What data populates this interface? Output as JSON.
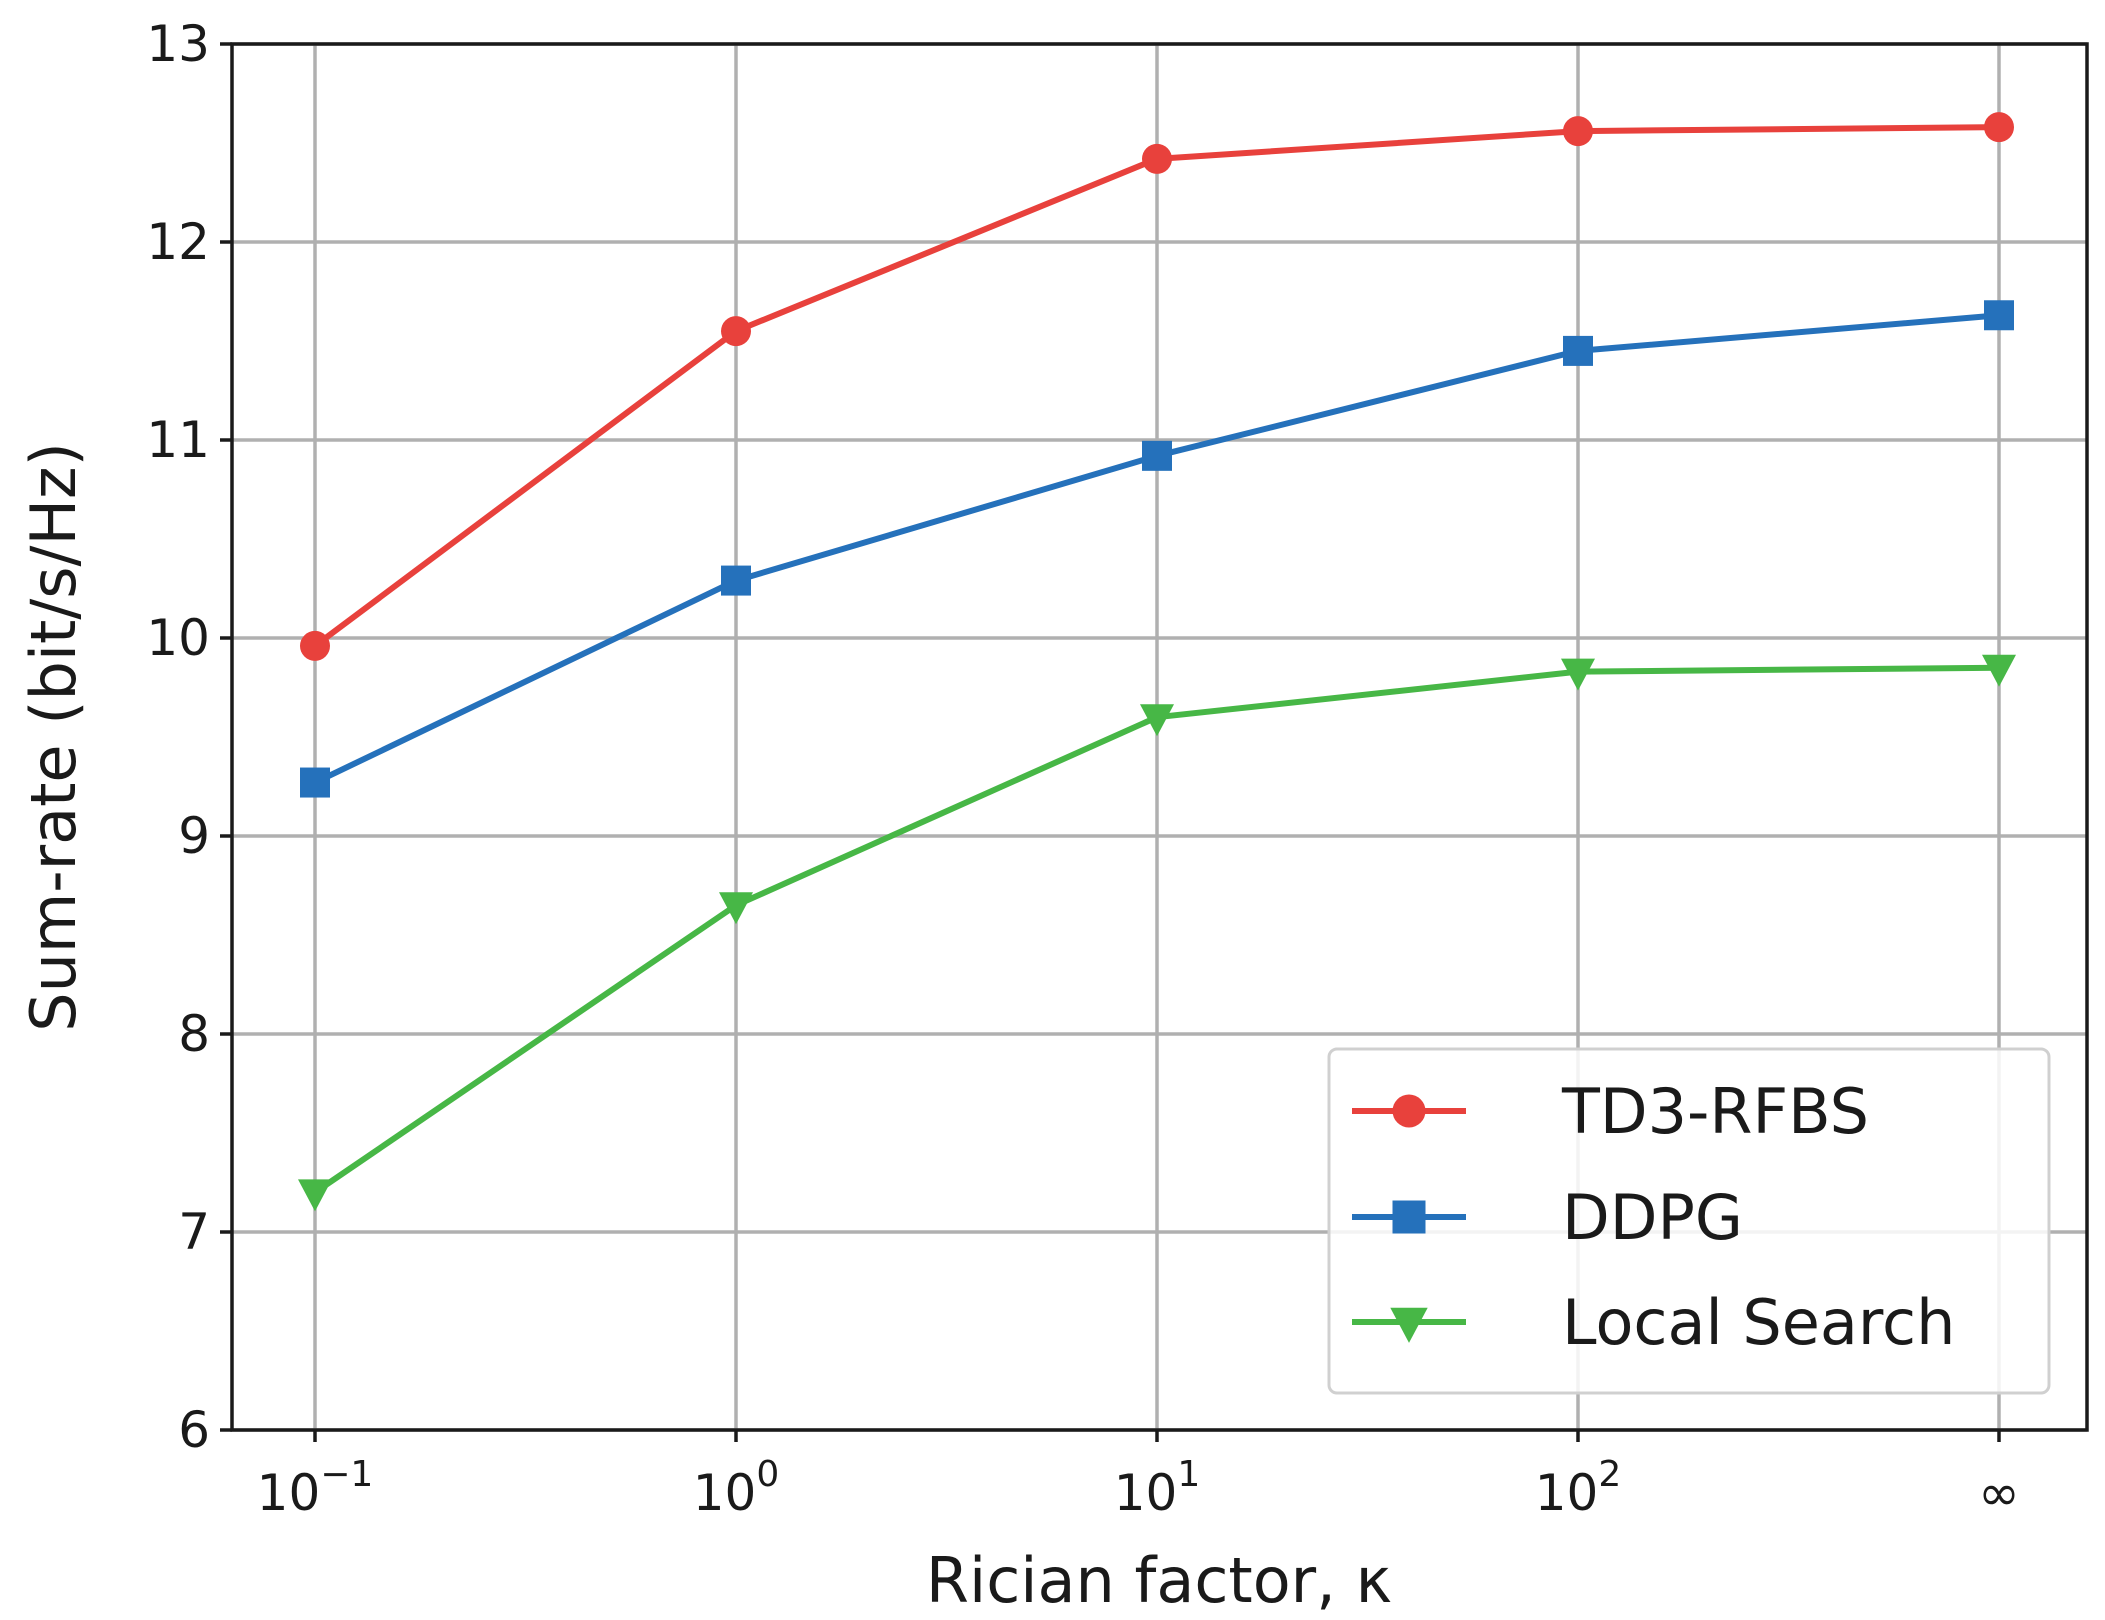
{
  "chart_data": {
    "type": "line",
    "title": "",
    "xlabel": "Rician factor, κ",
    "ylabel": "Sum-rate (bit/s/Hz)",
    "categories": [
      "10",
      "10",
      "10",
      "10",
      "∞"
    ],
    "category_exponents": [
      "−1",
      "0",
      "1",
      "2",
      ""
    ],
    "ylim": [
      6,
      13
    ],
    "yticks": [
      6,
      7,
      8,
      9,
      10,
      11,
      12,
      13
    ],
    "grid": true,
    "legend_position": "lower-right",
    "series": [
      {
        "name": "TD3-RFBS",
        "color": "#e8413c",
        "marker": "circle",
        "values": [
          9.96,
          11.55,
          12.42,
          12.56,
          12.58
        ]
      },
      {
        "name": "DDPG",
        "color": "#2571bb",
        "marker": "square",
        "values": [
          9.27,
          10.29,
          10.92,
          11.45,
          11.63
        ]
      },
      {
        "name": "Local Search",
        "color": "#47b746",
        "marker": "triangle-down",
        "values": [
          7.2,
          8.65,
          9.6,
          9.83,
          9.85
        ]
      }
    ]
  }
}
